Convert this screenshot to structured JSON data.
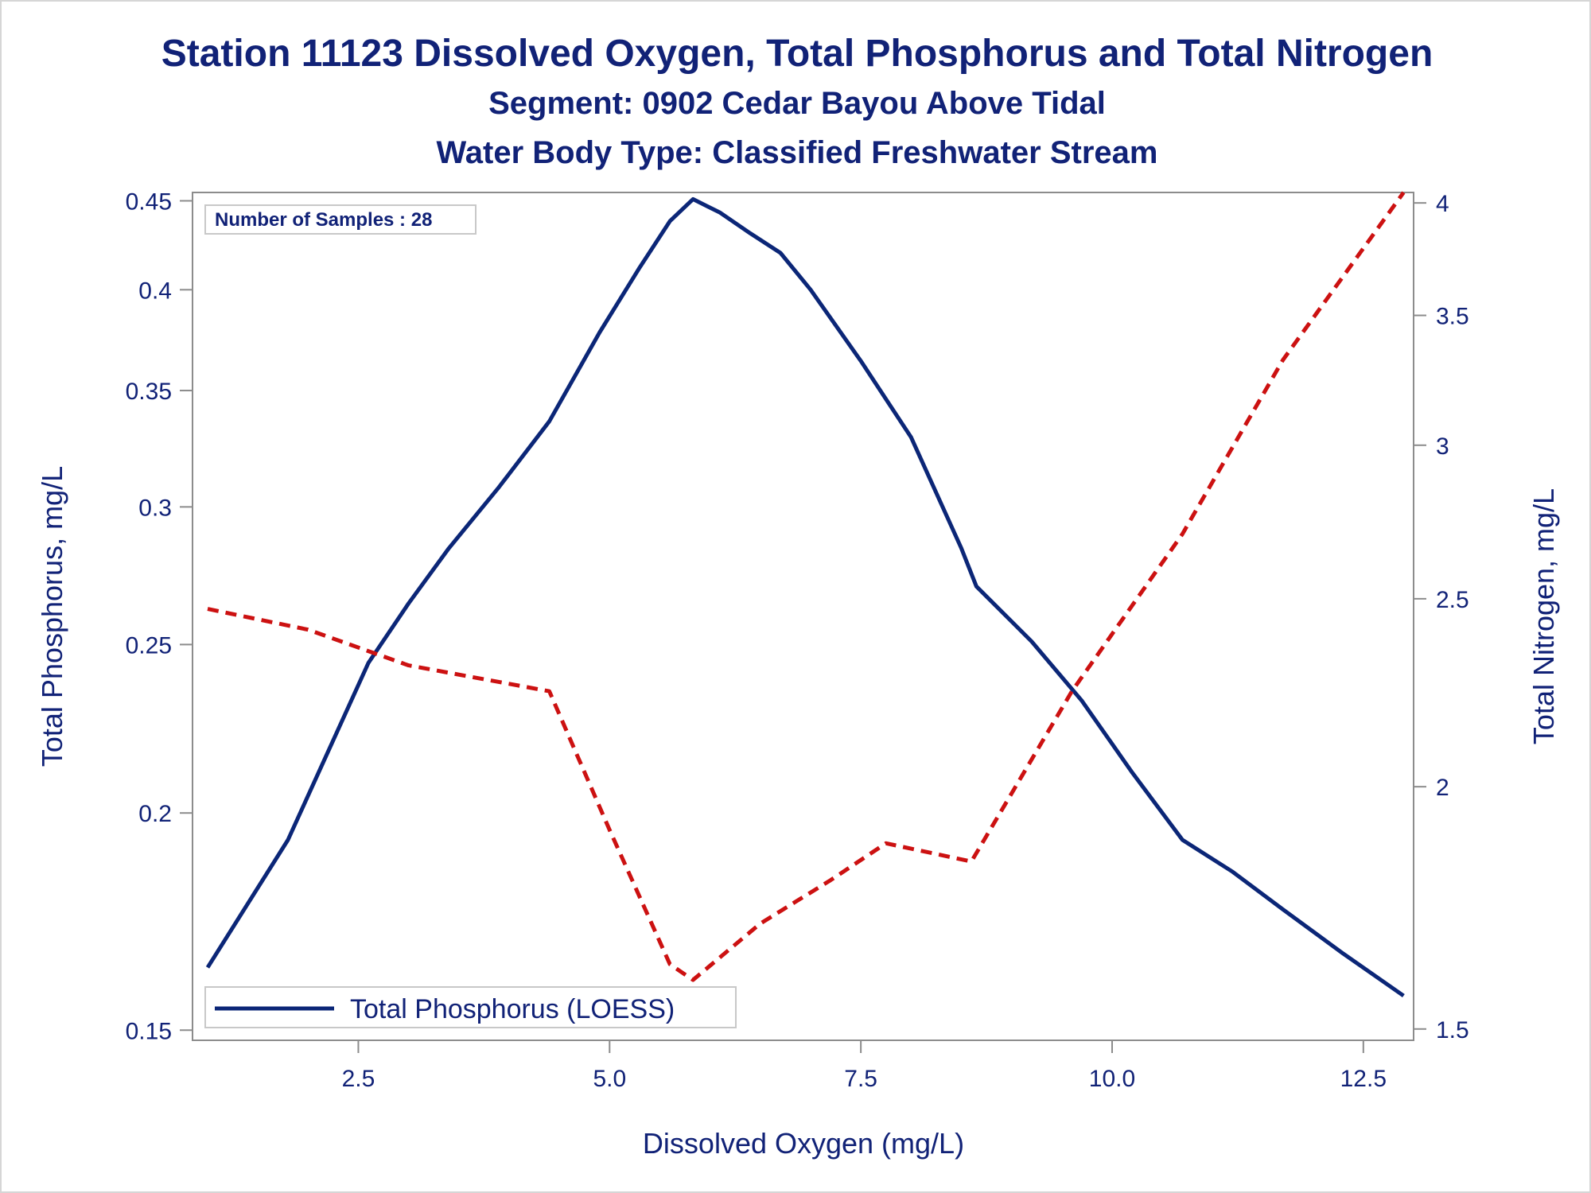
{
  "titles": {
    "line1": "Station 11123  Dissolved Oxygen, Total Phosphorus and Total Nitrogen",
    "line2": "Segment: 0902  Cedar Bayou Above Tidal",
    "line3": "Water Body Type: Classified Freshwater Stream"
  },
  "inset_label": "Number of Samples : 28",
  "legend": {
    "label": "Total Phosphorus (LOESS)"
  },
  "colors": {
    "text": "#112277",
    "phosphorus": "#0b2677",
    "nitrogen": "#cc1111",
    "axis": "#8c8c8c"
  },
  "chart_data": {
    "type": "line",
    "xlabel": "Dissolved Oxygen (mg/L)",
    "ylabel": "Total Phosphorus, mg/L",
    "y2label": "Total Nitrogen, mg/L",
    "xlim": [
      0.85,
      13.0
    ],
    "ylim": [
      0.148,
      0.455
    ],
    "y2lim": [
      1.48,
      4.05
    ],
    "y_scale": "log",
    "y2_scale": "log",
    "xticks": [
      "2.5",
      "5.0",
      "7.5",
      "10.0",
      "12.5"
    ],
    "yticks": [
      "0.15",
      "0.2",
      "0.25",
      "0.3",
      "0.35",
      "0.4",
      "0.45"
    ],
    "y2ticks": [
      "1.5",
      "2",
      "2.5",
      "3",
      "3.5",
      "4"
    ],
    "series": [
      {
        "name": "Total Phosphorus (LOESS)",
        "axis": "left",
        "style": "solid",
        "x": [
          1.0,
          1.8,
          2.6,
          3.0,
          3.4,
          3.9,
          4.4,
          4.9,
          5.3,
          5.6,
          5.83,
          6.1,
          6.4,
          6.7,
          7.0,
          7.5,
          8.0,
          8.5,
          8.65,
          9.2,
          9.7,
          10.2,
          10.7,
          11.2,
          11.7,
          12.3,
          12.9
        ],
        "y": [
          0.163,
          0.193,
          0.244,
          0.264,
          0.284,
          0.308,
          0.336,
          0.378,
          0.412,
          0.438,
          0.451,
          0.443,
          0.431,
          0.42,
          0.4,
          0.364,
          0.329,
          0.284,
          0.27,
          0.251,
          0.232,
          0.211,
          0.193,
          0.185,
          0.176,
          0.166,
          0.157
        ]
      },
      {
        "name": "",
        "axis": "right",
        "style": "dashed",
        "x": [
          1.0,
          2.0,
          3.0,
          4.4,
          5.0,
          5.6,
          5.83,
          6.5,
          7.2,
          7.75,
          8.6,
          9.6,
          10.7,
          11.7,
          12.9
        ],
        "y": [
          2.47,
          2.41,
          2.31,
          2.24,
          1.9,
          1.62,
          1.59,
          1.7,
          1.79,
          1.87,
          1.83,
          2.24,
          2.7,
          3.32,
          4.05
        ]
      }
    ]
  }
}
